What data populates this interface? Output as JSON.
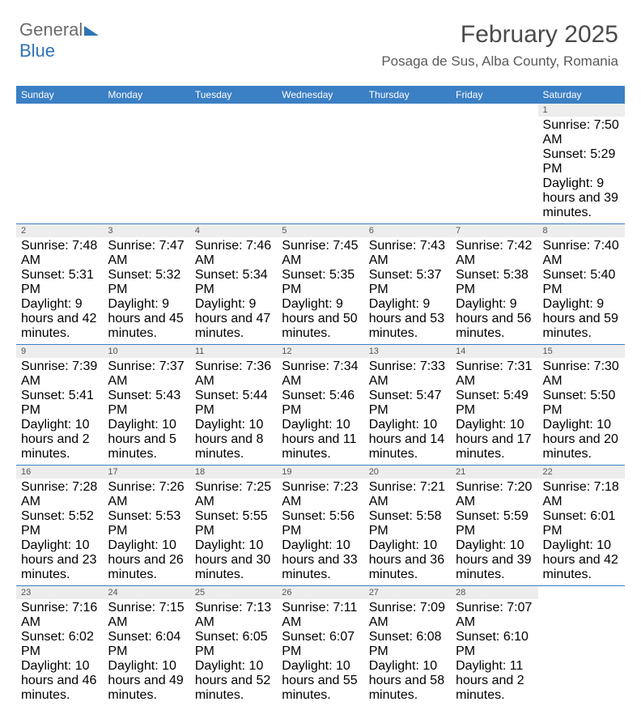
{
  "logo": {
    "part1": "General",
    "part2": "Blue"
  },
  "title": {
    "month": "February 2025",
    "location": "Posaga de Sus, Alba County, Romania"
  },
  "colors": {
    "header_bg": "#3b7fc4",
    "header_text": "#ffffff",
    "daynum_bg": "#ededed",
    "rule": "#3b7fc4",
    "body_text": "#444444",
    "logo_gray": "#6b6b6b",
    "logo_blue": "#2e74b5"
  },
  "day_headers": [
    "Sunday",
    "Monday",
    "Tuesday",
    "Wednesday",
    "Thursday",
    "Friday",
    "Saturday"
  ],
  "weeks": [
    [
      {
        "n": "",
        "sr": "",
        "ss": "",
        "dl": "",
        "empty": true
      },
      {
        "n": "",
        "sr": "",
        "ss": "",
        "dl": "",
        "empty": true
      },
      {
        "n": "",
        "sr": "",
        "ss": "",
        "dl": "",
        "empty": true
      },
      {
        "n": "",
        "sr": "",
        "ss": "",
        "dl": "",
        "empty": true
      },
      {
        "n": "",
        "sr": "",
        "ss": "",
        "dl": "",
        "empty": true
      },
      {
        "n": "",
        "sr": "",
        "ss": "",
        "dl": "",
        "empty": true
      },
      {
        "n": "1",
        "sr": "Sunrise: 7:50 AM",
        "ss": "Sunset: 5:29 PM",
        "dl": "Daylight: 9 hours and 39 minutes."
      }
    ],
    [
      {
        "n": "2",
        "sr": "Sunrise: 7:48 AM",
        "ss": "Sunset: 5:31 PM",
        "dl": "Daylight: 9 hours and 42 minutes."
      },
      {
        "n": "3",
        "sr": "Sunrise: 7:47 AM",
        "ss": "Sunset: 5:32 PM",
        "dl": "Daylight: 9 hours and 45 minutes."
      },
      {
        "n": "4",
        "sr": "Sunrise: 7:46 AM",
        "ss": "Sunset: 5:34 PM",
        "dl": "Daylight: 9 hours and 47 minutes."
      },
      {
        "n": "5",
        "sr": "Sunrise: 7:45 AM",
        "ss": "Sunset: 5:35 PM",
        "dl": "Daylight: 9 hours and 50 minutes."
      },
      {
        "n": "6",
        "sr": "Sunrise: 7:43 AM",
        "ss": "Sunset: 5:37 PM",
        "dl": "Daylight: 9 hours and 53 minutes."
      },
      {
        "n": "7",
        "sr": "Sunrise: 7:42 AM",
        "ss": "Sunset: 5:38 PM",
        "dl": "Daylight: 9 hours and 56 minutes."
      },
      {
        "n": "8",
        "sr": "Sunrise: 7:40 AM",
        "ss": "Sunset: 5:40 PM",
        "dl": "Daylight: 9 hours and 59 minutes."
      }
    ],
    [
      {
        "n": "9",
        "sr": "Sunrise: 7:39 AM",
        "ss": "Sunset: 5:41 PM",
        "dl": "Daylight: 10 hours and 2 minutes."
      },
      {
        "n": "10",
        "sr": "Sunrise: 7:37 AM",
        "ss": "Sunset: 5:43 PM",
        "dl": "Daylight: 10 hours and 5 minutes."
      },
      {
        "n": "11",
        "sr": "Sunrise: 7:36 AM",
        "ss": "Sunset: 5:44 PM",
        "dl": "Daylight: 10 hours and 8 minutes."
      },
      {
        "n": "12",
        "sr": "Sunrise: 7:34 AM",
        "ss": "Sunset: 5:46 PM",
        "dl": "Daylight: 10 hours and 11 minutes."
      },
      {
        "n": "13",
        "sr": "Sunrise: 7:33 AM",
        "ss": "Sunset: 5:47 PM",
        "dl": "Daylight: 10 hours and 14 minutes."
      },
      {
        "n": "14",
        "sr": "Sunrise: 7:31 AM",
        "ss": "Sunset: 5:49 PM",
        "dl": "Daylight: 10 hours and 17 minutes."
      },
      {
        "n": "15",
        "sr": "Sunrise: 7:30 AM",
        "ss": "Sunset: 5:50 PM",
        "dl": "Daylight: 10 hours and 20 minutes."
      }
    ],
    [
      {
        "n": "16",
        "sr": "Sunrise: 7:28 AM",
        "ss": "Sunset: 5:52 PM",
        "dl": "Daylight: 10 hours and 23 minutes."
      },
      {
        "n": "17",
        "sr": "Sunrise: 7:26 AM",
        "ss": "Sunset: 5:53 PM",
        "dl": "Daylight: 10 hours and 26 minutes."
      },
      {
        "n": "18",
        "sr": "Sunrise: 7:25 AM",
        "ss": "Sunset: 5:55 PM",
        "dl": "Daylight: 10 hours and 30 minutes."
      },
      {
        "n": "19",
        "sr": "Sunrise: 7:23 AM",
        "ss": "Sunset: 5:56 PM",
        "dl": "Daylight: 10 hours and 33 minutes."
      },
      {
        "n": "20",
        "sr": "Sunrise: 7:21 AM",
        "ss": "Sunset: 5:58 PM",
        "dl": "Daylight: 10 hours and 36 minutes."
      },
      {
        "n": "21",
        "sr": "Sunrise: 7:20 AM",
        "ss": "Sunset: 5:59 PM",
        "dl": "Daylight: 10 hours and 39 minutes."
      },
      {
        "n": "22",
        "sr": "Sunrise: 7:18 AM",
        "ss": "Sunset: 6:01 PM",
        "dl": "Daylight: 10 hours and 42 minutes."
      }
    ],
    [
      {
        "n": "23",
        "sr": "Sunrise: 7:16 AM",
        "ss": "Sunset: 6:02 PM",
        "dl": "Daylight: 10 hours and 46 minutes."
      },
      {
        "n": "24",
        "sr": "Sunrise: 7:15 AM",
        "ss": "Sunset: 6:04 PM",
        "dl": "Daylight: 10 hours and 49 minutes."
      },
      {
        "n": "25",
        "sr": "Sunrise: 7:13 AM",
        "ss": "Sunset: 6:05 PM",
        "dl": "Daylight: 10 hours and 52 minutes."
      },
      {
        "n": "26",
        "sr": "Sunrise: 7:11 AM",
        "ss": "Sunset: 6:07 PM",
        "dl": "Daylight: 10 hours and 55 minutes."
      },
      {
        "n": "27",
        "sr": "Sunrise: 7:09 AM",
        "ss": "Sunset: 6:08 PM",
        "dl": "Daylight: 10 hours and 58 minutes."
      },
      {
        "n": "28",
        "sr": "Sunrise: 7:07 AM",
        "ss": "Sunset: 6:10 PM",
        "dl": "Daylight: 11 hours and 2 minutes."
      },
      {
        "n": "",
        "sr": "",
        "ss": "",
        "dl": "",
        "empty": true
      }
    ]
  ]
}
